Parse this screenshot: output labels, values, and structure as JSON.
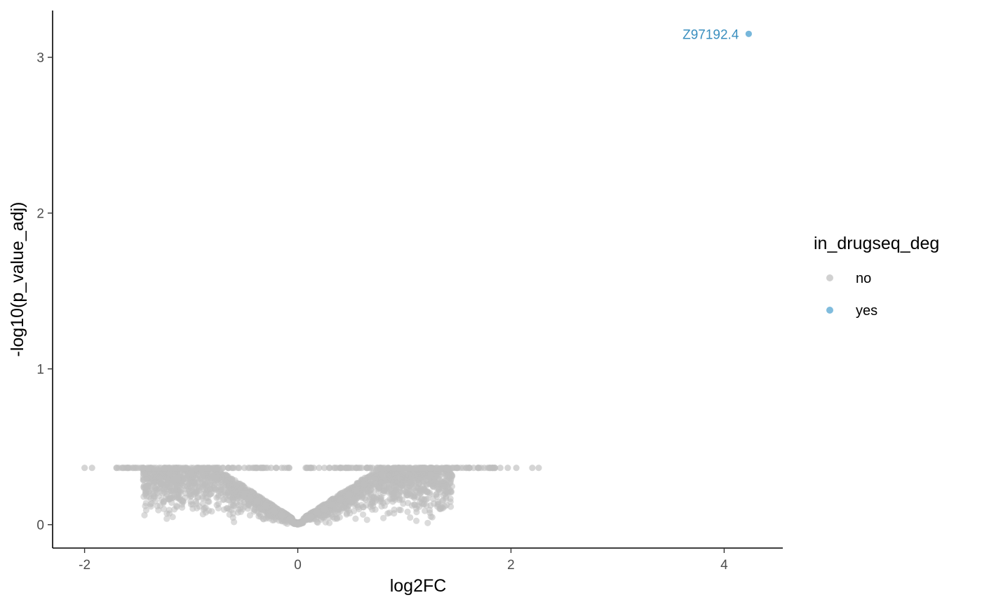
{
  "chart_data": {
    "type": "scatter",
    "title": "",
    "xlabel": "log2FC",
    "ylabel": "-log10(p_value_adj)",
    "xlim": [
      -2.3,
      4.55
    ],
    "ylim": [
      -0.15,
      3.3
    ],
    "x_ticks": [
      -2,
      0,
      2,
      4
    ],
    "y_ticks": [
      0,
      1,
      2,
      3
    ],
    "x_tick_labels": [
      "-2",
      "0",
      "2",
      "4"
    ],
    "y_tick_labels": [
      "0",
      "1",
      "2",
      "3"
    ],
    "grid": false,
    "legend": {
      "title": "in_drugseq_deg",
      "placement": "right",
      "entries": [
        {
          "label": "no",
          "color": "#bebebe"
        },
        {
          "label": "yes",
          "color": "#4a9fcf"
        }
      ]
    },
    "series": [
      {
        "name": "no",
        "color": "#bebebe",
        "points": [
          [
            -2.0,
            0.365
          ],
          [
            -1.93,
            0.365
          ],
          [
            -1.7,
            0.365
          ],
          [
            -1.65,
            0.365
          ],
          [
            -1.6,
            0.365
          ],
          [
            -1.55,
            0.365
          ],
          [
            -1.5,
            0.365
          ],
          [
            -1.45,
            0.365
          ],
          [
            -1.4,
            0.365
          ],
          [
            -1.35,
            0.365
          ],
          [
            -1.3,
            0.365
          ],
          [
            -1.25,
            0.365
          ],
          [
            -1.2,
            0.365
          ],
          [
            -1.15,
            0.365
          ],
          [
            -1.1,
            0.365
          ],
          [
            -1.05,
            0.365
          ],
          [
            -1.0,
            0.365
          ],
          [
            -0.95,
            0.365
          ],
          [
            -0.9,
            0.365
          ],
          [
            -0.85,
            0.365
          ],
          [
            -0.8,
            0.365
          ],
          [
            -0.75,
            0.365
          ],
          [
            -0.7,
            0.365
          ],
          [
            -0.65,
            0.365
          ],
          [
            -0.6,
            0.365
          ],
          [
            -0.55,
            0.365
          ],
          [
            -0.5,
            0.365
          ],
          [
            -0.45,
            0.365
          ],
          [
            -0.4,
            0.365
          ],
          [
            -0.35,
            0.365
          ],
          [
            -0.3,
            0.365
          ],
          [
            -0.25,
            0.365
          ],
          [
            -0.2,
            0.365
          ],
          [
            -0.15,
            0.365
          ],
          [
            -0.1,
            0.365
          ],
          [
            -0.08,
            0.365
          ],
          [
            -1.13,
            0.29
          ],
          [
            -1.0,
            0.33
          ],
          [
            -0.9,
            0.33
          ],
          [
            -0.8,
            0.3
          ],
          [
            -0.72,
            0.24
          ],
          [
            -0.65,
            0.22
          ],
          [
            -0.58,
            0.27
          ],
          [
            -0.5,
            0.2
          ],
          [
            -0.45,
            0.17
          ],
          [
            -0.38,
            0.15
          ],
          [
            -0.3,
            0.12
          ],
          [
            -0.22,
            0.09
          ],
          [
            -0.15,
            0.06
          ],
          [
            -0.08,
            0.03
          ],
          [
            -0.04,
            0.01
          ],
          [
            0.0,
            0.0
          ],
          [
            0.04,
            0.01
          ],
          [
            0.08,
            0.03
          ],
          [
            0.12,
            0.05
          ],
          [
            0.18,
            0.08
          ],
          [
            0.25,
            0.1
          ],
          [
            0.32,
            0.13
          ],
          [
            0.4,
            0.16
          ],
          [
            0.48,
            0.19
          ],
          [
            0.55,
            0.22
          ],
          [
            0.62,
            0.26
          ],
          [
            0.7,
            0.29
          ],
          [
            0.8,
            0.32
          ],
          [
            0.33,
            0.05
          ],
          [
            0.9,
            0.2
          ],
          [
            0.95,
            0.19
          ],
          [
            1.07,
            0.24
          ],
          [
            1.25,
            0.32
          ],
          [
            0.1,
            0.365
          ],
          [
            0.15,
            0.365
          ],
          [
            0.2,
            0.365
          ],
          [
            0.25,
            0.365
          ],
          [
            0.3,
            0.365
          ],
          [
            0.35,
            0.365
          ],
          [
            0.4,
            0.365
          ],
          [
            0.45,
            0.365
          ],
          [
            0.5,
            0.365
          ],
          [
            0.55,
            0.365
          ],
          [
            0.6,
            0.365
          ],
          [
            0.65,
            0.365
          ],
          [
            0.7,
            0.365
          ],
          [
            0.75,
            0.365
          ],
          [
            0.8,
            0.365
          ],
          [
            0.85,
            0.365
          ],
          [
            0.9,
            0.365
          ],
          [
            0.95,
            0.365
          ],
          [
            1.0,
            0.365
          ],
          [
            1.05,
            0.365
          ],
          [
            1.1,
            0.365
          ],
          [
            1.15,
            0.365
          ],
          [
            1.2,
            0.365
          ],
          [
            1.25,
            0.365
          ],
          [
            1.3,
            0.365
          ],
          [
            1.35,
            0.365
          ],
          [
            1.4,
            0.365
          ],
          [
            1.45,
            0.365
          ],
          [
            1.5,
            0.365
          ],
          [
            1.55,
            0.365
          ],
          [
            1.6,
            0.365
          ],
          [
            1.65,
            0.365
          ],
          [
            1.7,
            0.365
          ],
          [
            1.75,
            0.365
          ],
          [
            1.8,
            0.365
          ],
          [
            1.85,
            0.365
          ],
          [
            1.9,
            0.365
          ],
          [
            1.97,
            0.365
          ],
          [
            2.05,
            0.365
          ],
          [
            2.2,
            0.365
          ],
          [
            2.26,
            0.365
          ]
        ]
      },
      {
        "name": "yes",
        "color": "#4a9fcf",
        "points": [
          [
            4.23,
            3.15
          ]
        ]
      }
    ],
    "annotations": [
      {
        "text": "Z97192.4",
        "x": 4.23,
        "y": 3.15,
        "color": "#3a8fbf"
      }
    ]
  }
}
